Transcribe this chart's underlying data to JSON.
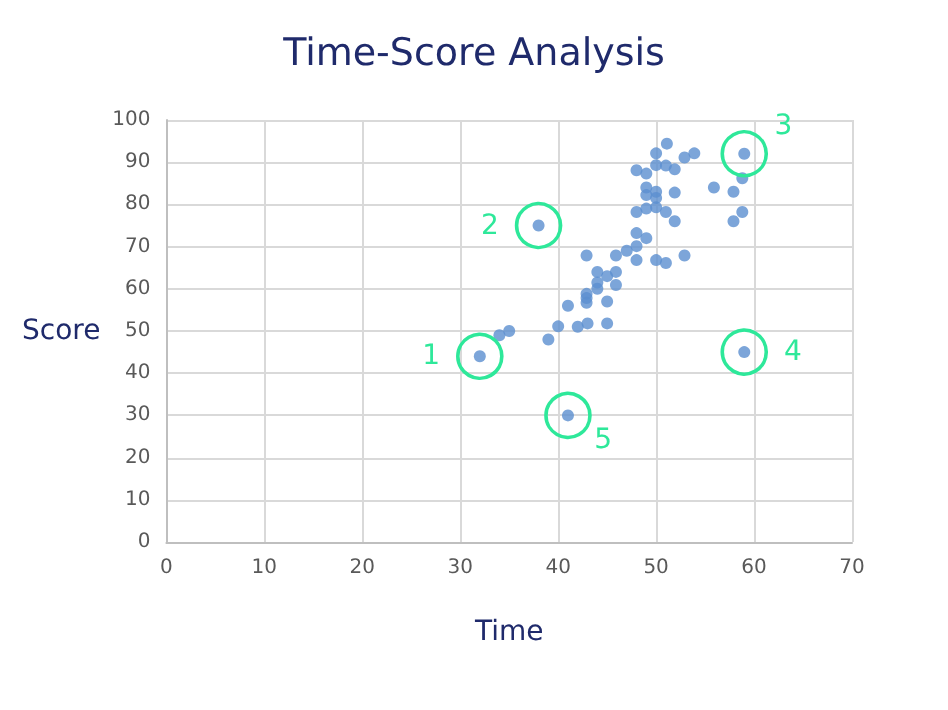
{
  "chart_data": {
    "type": "scatter",
    "title": "Time-Score Analysis",
    "xlabel": "Time",
    "ylabel": "Score",
    "x": [
      51.1,
      50,
      52.9,
      53.9,
      48,
      49,
      50,
      51,
      51.9,
      59,
      58.8,
      55.9,
      57.9,
      51.9,
      49,
      49,
      50,
      50,
      48,
      49,
      50,
      51,
      51.9,
      58.8,
      57.9,
      38,
      48,
      49,
      48,
      47,
      45.9,
      42.9,
      48,
      50,
      51,
      52.9,
      44,
      45,
      45.9,
      44,
      44,
      45.9,
      42.9,
      42.9,
      42.9,
      41,
      45,
      40,
      42,
      43,
      45,
      34,
      35,
      39,
      32,
      59,
      41
    ],
    "series": [
      {
        "color": "#5b8fd0",
        "values": [
          94.4,
          92.1,
          91.1,
          92.1,
          88.1,
          87.3,
          89.3,
          89.2,
          88.3,
          92,
          86.2,
          84,
          83,
          82.8,
          84,
          82.2,
          83,
          81.5,
          78.2,
          79,
          79.3,
          78.2,
          76,
          78.2,
          76,
          75,
          73.2,
          72,
          70.1,
          69,
          67.9,
          67.9,
          66.8,
          66.8,
          66.1,
          67.9,
          64,
          63,
          64,
          61.5,
          60,
          60.9,
          58.8,
          57.8,
          56.7,
          56,
          57,
          51.1,
          51,
          51.8,
          51.8,
          49,
          50,
          48,
          44,
          45,
          30
        ]
      }
    ],
    "xlim": [
      0,
      70
    ],
    "xticks": [
      0,
      10,
      20,
      30,
      40,
      50,
      60,
      70
    ],
    "ylim": [
      0,
      100
    ],
    "yticks": [
      0,
      10,
      20,
      30,
      40,
      50,
      60,
      70,
      80,
      90,
      100
    ],
    "grid": true,
    "marker": "circle",
    "annotations": [
      {
        "text": "1",
        "x": 32,
        "y": 44
      },
      {
        "text": "2",
        "x": 38,
        "y": 75
      },
      {
        "text": "3",
        "x": 59,
        "y": 92
      },
      {
        "text": "4",
        "x": 59,
        "y": 45
      },
      {
        "text": "5",
        "x": 41,
        "y": 30
      }
    ]
  }
}
